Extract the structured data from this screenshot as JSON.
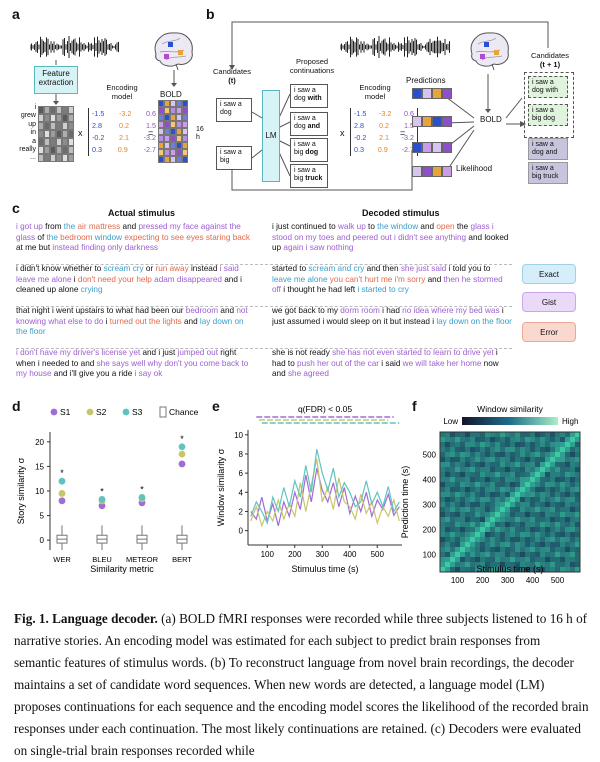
{
  "panel_a": {
    "letter": "a",
    "feature_extraction": "Feature extraction",
    "words": [
      "i",
      "grew",
      "up",
      "in",
      "a",
      "really",
      "..."
    ],
    "encoding_model_label": "Encoding model",
    "bold_label": "BOLD",
    "hours_label": "16 h",
    "times_sign": "x",
    "equals_sign": "=",
    "matrix_values": [
      [
        "-1.5",
        "-3.2",
        "0.6"
      ],
      [
        "2.8",
        "0.2",
        "1.5"
      ],
      [
        "-0.2",
        "2.1",
        "-3.2"
      ],
      [
        "0.3",
        "0.9",
        "-2.7"
      ]
    ]
  },
  "panel_b": {
    "letter": "b",
    "candidates_t": "Candidates",
    "candidates_t_sub": "(t)",
    "cand1": "i saw a dog",
    "cand2": "i saw a big",
    "lm_label": "LM",
    "proposed_label": "Proposed continuations",
    "conts": [
      {
        "prefix": "i saw a dog ",
        "bold": "with"
      },
      {
        "prefix": "i saw a dog ",
        "bold": "and"
      },
      {
        "prefix": "i saw a big ",
        "bold": "dog"
      },
      {
        "prefix": "i saw a big ",
        "bold": "truck"
      }
    ],
    "encoding_model_label": "Encoding model",
    "predictions_label": "Predictions",
    "bold_label": "BOLD",
    "likelihood_label": "Likelihood",
    "candidates_t1": "Candidates",
    "candidates_t1_sub": "(t + 1)",
    "next_cands": [
      "i saw a dog with",
      "i saw a big dog",
      "i saw a dog and",
      "i saw a big truck"
    ],
    "times_sign": "x",
    "equals_sign": "="
  },
  "panel_c": {
    "letter": "c",
    "actual_heading": "Actual stimulus",
    "decoded_heading": "Decoded stimulus",
    "rows": [
      {
        "actual": [
          {
            "t": "i got up",
            "c": "gist"
          },
          {
            "t": " from ",
            "c": "plain"
          },
          {
            "t": "the",
            "c": "exact"
          },
          {
            "t": " air mattress",
            "c": "error"
          },
          {
            "t": " and ",
            "c": "plain"
          },
          {
            "t": "pressed my face against the glass",
            "c": "gist"
          },
          {
            "t": " of ",
            "c": "plain"
          },
          {
            "t": "the",
            "c": "exact"
          },
          {
            "t": " bedroom",
            "c": "error"
          },
          {
            "t": " window",
            "c": "exact"
          },
          {
            "t": " expecting to see eyes staring back",
            "c": "error"
          },
          {
            "t": " at me but ",
            "c": "plain"
          },
          {
            "t": "instead finding only darkness",
            "c": "gist"
          }
        ],
        "decoded": [
          {
            "t": "i just continued to ",
            "c": "plain"
          },
          {
            "t": "walk up",
            "c": "gist"
          },
          {
            "t": " to ",
            "c": "plain"
          },
          {
            "t": "the",
            "c": "exact"
          },
          {
            "t": " window",
            "c": "exact"
          },
          {
            "t": " and ",
            "c": "plain"
          },
          {
            "t": "open",
            "c": "error"
          },
          {
            "t": " the ",
            "c": "plain"
          },
          {
            "t": "glass i stood on my toes and peered out i didn't see anything",
            "c": "gist"
          },
          {
            "t": " and looked up ",
            "c": "plain"
          },
          {
            "t": "again i saw nothing",
            "c": "gist"
          }
        ]
      },
      {
        "actual": [
          {
            "t": "i didn't know whether to ",
            "c": "plain"
          },
          {
            "t": "scream cry",
            "c": "exact"
          },
          {
            "t": " or ",
            "c": "plain"
          },
          {
            "t": "run away",
            "c": "error"
          },
          {
            "t": " instead ",
            "c": "plain"
          },
          {
            "t": "i said leave me alone",
            "c": "gist"
          },
          {
            "t": " i ",
            "c": "plain"
          },
          {
            "t": "don't need your help",
            "c": "error"
          },
          {
            "t": " adam disappeared",
            "c": "gist"
          },
          {
            "t": " and i cleaned up alone ",
            "c": "plain"
          },
          {
            "t": "crying",
            "c": "exact"
          }
        ],
        "decoded": [
          {
            "t": "started to ",
            "c": "plain"
          },
          {
            "t": "scream and cry",
            "c": "exact"
          },
          {
            "t": " and then ",
            "c": "plain"
          },
          {
            "t": "she just said",
            "c": "gist"
          },
          {
            "t": " i told you to ",
            "c": "plain"
          },
          {
            "t": "leave me alone",
            "c": "exact"
          },
          {
            "t": " you can't hurt me i'm sorry",
            "c": "error"
          },
          {
            "t": " and ",
            "c": "plain"
          },
          {
            "t": "then he stormed off",
            "c": "gist"
          },
          {
            "t": " i thought he had left ",
            "c": "plain"
          },
          {
            "t": "i started to cry",
            "c": "exact"
          }
        ]
      },
      {
        "actual": [
          {
            "t": "that night i went upstairs to what had been our ",
            "c": "plain"
          },
          {
            "t": "bedroom",
            "c": "gist"
          },
          {
            "t": " and ",
            "c": "plain"
          },
          {
            "t": "not knowing what else to do",
            "c": "gist"
          },
          {
            "t": " i ",
            "c": "plain"
          },
          {
            "t": "turned out the lights",
            "c": "error"
          },
          {
            "t": " and ",
            "c": "plain"
          },
          {
            "t": "lay down on the floor",
            "c": "exact"
          }
        ],
        "decoded": [
          {
            "t": "we got back to my ",
            "c": "plain"
          },
          {
            "t": "dorm room",
            "c": "gist"
          },
          {
            "t": " i had ",
            "c": "plain"
          },
          {
            "t": "no idea where my bed was",
            "c": "gist"
          },
          {
            "t": " i just assumed i would sleep on it but instead i ",
            "c": "plain"
          },
          {
            "t": "lay down on the floor",
            "c": "exact"
          }
        ]
      },
      {
        "actual": [
          {
            "t": "i don't have my driver's license yet",
            "c": "gist"
          },
          {
            "t": " and i just ",
            "c": "plain"
          },
          {
            "t": "jumped out",
            "c": "gist"
          },
          {
            "t": " right when i needed to and ",
            "c": "plain"
          },
          {
            "t": "she says well why don't you come back to my house",
            "c": "gist"
          },
          {
            "t": " and i'll give you a ride ",
            "c": "plain"
          },
          {
            "t": "i say ok",
            "c": "gist"
          }
        ],
        "decoded": [
          {
            "t": "she is not ready ",
            "c": "plain"
          },
          {
            "t": "she has not even started to learn to drive yet",
            "c": "gist"
          },
          {
            "t": " i had to ",
            "c": "plain"
          },
          {
            "t": "push her out of the car",
            "c": "gist"
          },
          {
            "t": " i said ",
            "c": "plain"
          },
          {
            "t": "we will take her home",
            "c": "gist"
          },
          {
            "t": " now and ",
            "c": "plain"
          },
          {
            "t": "she agreed",
            "c": "gist"
          }
        ]
      }
    ],
    "legend": [
      {
        "label": "Exact",
        "bg": "#d6eef9",
        "border": "#9fd0e8"
      },
      {
        "label": "Gist",
        "bg": "#ead9f7",
        "border": "#c9a7ea"
      },
      {
        "label": "Error",
        "bg": "#f9d9cf",
        "border": "#eca894"
      }
    ]
  },
  "colors": {
    "exact": "#3a9ec9",
    "gist": "#9c5fd0",
    "error": "#e06a4c",
    "s1": "#a06cd5",
    "s2": "#c9c66a",
    "s3": "#5fc4c0"
  },
  "chart_data": [
    {
      "panel": "d",
      "type": "scatter",
      "ylabel": "Story similarity σ",
      "xlabel": "Similarity metric",
      "categories": [
        "WER",
        "BLEU",
        "METEOR",
        "BERT"
      ],
      "ylim": [
        -2,
        22
      ],
      "yticks": [
        0,
        5,
        10,
        15,
        20
      ],
      "legend": [
        "S1",
        "S2",
        "S3",
        "Chance"
      ],
      "legend_placement": "top",
      "series": [
        {
          "name": "S1",
          "values": [
            8.0,
            7.0,
            7.6,
            15.5
          ]
        },
        {
          "name": "S2",
          "values": [
            9.5,
            8.0,
            8.4,
            17.5
          ]
        },
        {
          "name": "S3",
          "values": [
            12.0,
            8.3,
            8.7,
            19.0
          ]
        }
      ],
      "chance": [
        {
          "median": 0.2,
          "q1": -0.6,
          "q3": 1.0,
          "min": -2.0,
          "max": 3.0
        },
        {
          "median": 0.2,
          "q1": -0.6,
          "q3": 1.0,
          "min": -2.0,
          "max": 3.0
        },
        {
          "median": 0.2,
          "q1": -0.6,
          "q3": 1.0,
          "min": -2.0,
          "max": 3.0
        },
        {
          "median": 0.2,
          "q1": -0.6,
          "q3": 1.0,
          "min": -2.0,
          "max": 3.0
        }
      ],
      "significance_marker": "*"
    },
    {
      "panel": "e",
      "type": "line",
      "ylabel": "Window similarity σ",
      "xlabel": "Stimulus time (s)",
      "annotation": "q(FDR) < 0.05",
      "xlim": [
        30,
        590
      ],
      "ylim": [
        -1.5,
        10.5
      ],
      "xticks": [
        100,
        200,
        300,
        400,
        500
      ],
      "yticks": [
        0,
        2,
        4,
        6,
        8,
        10
      ],
      "x": [
        40,
        60,
        80,
        100,
        120,
        140,
        160,
        180,
        200,
        220,
        240,
        260,
        280,
        300,
        320,
        340,
        360,
        380,
        400,
        420,
        440,
        460,
        480,
        500,
        520,
        540,
        560,
        580
      ],
      "series": [
        {
          "name": "S1",
          "values": [
            2.0,
            1.2,
            3.5,
            1.0,
            2.8,
            0.5,
            3.0,
            1.5,
            4.0,
            2.2,
            5.8,
            3.0,
            6.5,
            4.2,
            3.0,
            5.0,
            2.5,
            4.5,
            1.8,
            3.6,
            2.0,
            4.0,
            1.5,
            3.2,
            2.2,
            3.8,
            1.6,
            2.5
          ]
        },
        {
          "name": "S2",
          "values": [
            1.0,
            2.5,
            0.5,
            2.0,
            1.0,
            3.2,
            1.2,
            2.8,
            1.5,
            5.0,
            2.0,
            4.8,
            7.5,
            3.0,
            4.5,
            2.2,
            5.5,
            3.0,
            2.5,
            1.2,
            3.8,
            1.8,
            3.0,
            0.8,
            2.5,
            1.5,
            3.2,
            1.0
          ]
        },
        {
          "name": "S3",
          "values": [
            1.5,
            3.0,
            2.0,
            0.8,
            3.5,
            2.0,
            4.5,
            2.5,
            5.2,
            3.5,
            6.8,
            4.0,
            8.5,
            6.0,
            4.2,
            6.5,
            3.5,
            5.0,
            4.0,
            2.5,
            3.0,
            5.2,
            2.8,
            4.0,
            2.5,
            4.6,
            2.0,
            3.0
          ]
        }
      ]
    },
    {
      "panel": "f",
      "type": "heatmap",
      "title": "Window similarity",
      "colorbar_low": "Low",
      "colorbar_high": "High",
      "xlabel": "Stimulus time (s)",
      "ylabel": "Prediction time (s)",
      "xticks": [
        100,
        200,
        300,
        400,
        500
      ],
      "yticks": [
        100,
        200,
        300,
        400,
        500
      ],
      "range": [
        30,
        590
      ]
    }
  ],
  "caption": {
    "label": "Fig. 1. Language decoder.",
    "text": " (a) BOLD fMRI responses were recorded while three subjects listened to 16 h of narrative stories. An encoding model was estimated for each subject to predict brain responses from semantic features of stimulus words. (b) To reconstruct language from novel brain recordings, the decoder maintains a set of candidate word sequences. When new words are detected, a language model (LM) proposes continuations for each sequence and the encoding model scores the likelihood of the recorded brain responses under each continuation. The most likely continuations are retained. (c) Decoders were evaluated on single-trial brain responses recorded while"
  }
}
